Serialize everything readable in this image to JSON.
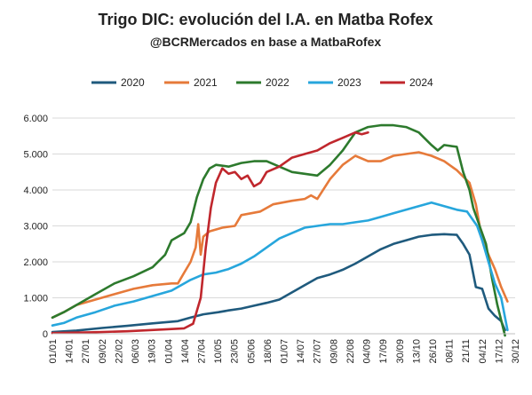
{
  "chart_data": {
    "type": "line",
    "title": "Trigo DIC: evolución del I.A. en Matba Rofex",
    "subtitle": "@BCRMercados en base a MatbaRofex",
    "ylim": [
      0,
      6000
    ],
    "yticks": [
      0,
      1000,
      2000,
      3000,
      4000,
      5000,
      6000
    ],
    "ytick_labels": [
      "0",
      "1.000",
      "2.000",
      "3.000",
      "4.000",
      "5.000",
      "6.000"
    ],
    "xlim": [
      1,
      366
    ],
    "x_units": "day of year",
    "xtick_labels": [
      "01/01",
      "14/01",
      "27/01",
      "09/02",
      "22/02",
      "06/03",
      "19/03",
      "01/04",
      "14/04",
      "27/04",
      "10/05",
      "23/05",
      "05/06",
      "18/06",
      "01/07",
      "14/07",
      "27/07",
      "09/08",
      "22/08",
      "04/09",
      "17/09",
      "30/09",
      "13/10",
      "26/10",
      "08/11",
      "21/11",
      "04/12",
      "17/12",
      "30/12"
    ],
    "grid": "horizontal",
    "legend_position": "top",
    "series": [
      {
        "name": "2020",
        "color": "#1f5a7d",
        "points": [
          [
            1,
            50
          ],
          [
            20,
            90
          ],
          [
            40,
            160
          ],
          [
            60,
            220
          ],
          [
            80,
            290
          ],
          [
            100,
            350
          ],
          [
            110,
            450
          ],
          [
            120,
            540
          ],
          [
            132,
            600
          ],
          [
            140,
            650
          ],
          [
            150,
            700
          ],
          [
            160,
            780
          ],
          [
            170,
            860
          ],
          [
            180,
            950
          ],
          [
            190,
            1150
          ],
          [
            200,
            1350
          ],
          [
            210,
            1550
          ],
          [
            220,
            1650
          ],
          [
            230,
            1780
          ],
          [
            240,
            1950
          ],
          [
            250,
            2150
          ],
          [
            260,
            2350
          ],
          [
            270,
            2500
          ],
          [
            280,
            2600
          ],
          [
            290,
            2700
          ],
          [
            300,
            2750
          ],
          [
            310,
            2770
          ],
          [
            320,
            2750
          ],
          [
            325,
            2500
          ],
          [
            330,
            2200
          ],
          [
            335,
            1300
          ],
          [
            340,
            1250
          ],
          [
            345,
            700
          ],
          [
            350,
            500
          ],
          [
            355,
            350
          ],
          [
            358,
            100
          ]
        ]
      },
      {
        "name": "2021",
        "color": "#e67a3a",
        "points": [
          [
            1,
            450
          ],
          [
            10,
            600
          ],
          [
            20,
            800
          ],
          [
            35,
            950
          ],
          [
            50,
            1100
          ],
          [
            65,
            1250
          ],
          [
            80,
            1350
          ],
          [
            95,
            1400
          ],
          [
            100,
            1400
          ],
          [
            105,
            1700
          ],
          [
            110,
            2000
          ],
          [
            114,
            2400
          ],
          [
            116,
            3050
          ],
          [
            118,
            2200
          ],
          [
            120,
            2700
          ],
          [
            125,
            2850
          ],
          [
            135,
            2950
          ],
          [
            145,
            3000
          ],
          [
            150,
            3300
          ],
          [
            165,
            3400
          ],
          [
            175,
            3600
          ],
          [
            190,
            3700
          ],
          [
            200,
            3750
          ],
          [
            205,
            3850
          ],
          [
            210,
            3750
          ],
          [
            220,
            4300
          ],
          [
            230,
            4700
          ],
          [
            240,
            4950
          ],
          [
            250,
            4800
          ],
          [
            260,
            4800
          ],
          [
            270,
            4950
          ],
          [
            280,
            5000
          ],
          [
            290,
            5050
          ],
          [
            300,
            4950
          ],
          [
            310,
            4800
          ],
          [
            320,
            4550
          ],
          [
            330,
            4200
          ],
          [
            335,
            3600
          ],
          [
            340,
            2600
          ],
          [
            345,
            2200
          ],
          [
            350,
            1800
          ],
          [
            355,
            1300
          ],
          [
            360,
            900
          ]
        ]
      },
      {
        "name": "2022",
        "color": "#2d7a2d",
        "points": [
          [
            1,
            450
          ],
          [
            10,
            600
          ],
          [
            20,
            800
          ],
          [
            35,
            1100
          ],
          [
            50,
            1400
          ],
          [
            65,
            1600
          ],
          [
            80,
            1850
          ],
          [
            90,
            2200
          ],
          [
            95,
            2600
          ],
          [
            105,
            2800
          ],
          [
            110,
            3100
          ],
          [
            115,
            3800
          ],
          [
            120,
            4300
          ],
          [
            125,
            4600
          ],
          [
            130,
            4700
          ],
          [
            140,
            4650
          ],
          [
            150,
            4750
          ],
          [
            160,
            4800
          ],
          [
            170,
            4800
          ],
          [
            180,
            4650
          ],
          [
            190,
            4500
          ],
          [
            200,
            4450
          ],
          [
            210,
            4400
          ],
          [
            220,
            4700
          ],
          [
            230,
            5100
          ],
          [
            240,
            5600
          ],
          [
            250,
            5750
          ],
          [
            260,
            5800
          ],
          [
            270,
            5800
          ],
          [
            280,
            5750
          ],
          [
            290,
            5600
          ],
          [
            300,
            5250
          ],
          [
            305,
            5100
          ],
          [
            310,
            5250
          ],
          [
            320,
            5200
          ],
          [
            325,
            4500
          ],
          [
            330,
            4000
          ],
          [
            333,
            3500
          ],
          [
            338,
            3000
          ],
          [
            343,
            2500
          ],
          [
            348,
            1500
          ],
          [
            352,
            800
          ],
          [
            358,
            -50
          ]
        ]
      },
      {
        "name": "2023",
        "color": "#27a6dc",
        "points": [
          [
            1,
            230
          ],
          [
            10,
            300
          ],
          [
            20,
            450
          ],
          [
            35,
            600
          ],
          [
            50,
            780
          ],
          [
            65,
            900
          ],
          [
            80,
            1050
          ],
          [
            95,
            1200
          ],
          [
            110,
            1500
          ],
          [
            120,
            1650
          ],
          [
            130,
            1700
          ],
          [
            140,
            1800
          ],
          [
            150,
            1950
          ],
          [
            160,
            2150
          ],
          [
            170,
            2400
          ],
          [
            180,
            2650
          ],
          [
            190,
            2800
          ],
          [
            200,
            2950
          ],
          [
            210,
            3000
          ],
          [
            220,
            3050
          ],
          [
            230,
            3050
          ],
          [
            240,
            3100
          ],
          [
            250,
            3150
          ],
          [
            260,
            3250
          ],
          [
            270,
            3350
          ],
          [
            280,
            3450
          ],
          [
            290,
            3550
          ],
          [
            300,
            3650
          ],
          [
            310,
            3550
          ],
          [
            320,
            3450
          ],
          [
            328,
            3400
          ],
          [
            332,
            3200
          ],
          [
            336,
            3000
          ],
          [
            340,
            2600
          ],
          [
            345,
            2000
          ],
          [
            350,
            1400
          ],
          [
            355,
            1000
          ],
          [
            360,
            100
          ]
        ]
      },
      {
        "name": "2024",
        "color": "#c0272d",
        "points": [
          [
            1,
            20
          ],
          [
            30,
            40
          ],
          [
            60,
            70
          ],
          [
            90,
            120
          ],
          [
            105,
            150
          ],
          [
            112,
            280
          ],
          [
            118,
            1000
          ],
          [
            122,
            2400
          ],
          [
            126,
            3500
          ],
          [
            130,
            4200
          ],
          [
            135,
            4600
          ],
          [
            140,
            4450
          ],
          [
            145,
            4500
          ],
          [
            150,
            4300
          ],
          [
            155,
            4400
          ],
          [
            160,
            4100
          ],
          [
            165,
            4200
          ],
          [
            170,
            4500
          ],
          [
            180,
            4650
          ],
          [
            190,
            4900
          ],
          [
            200,
            5000
          ],
          [
            210,
            5100
          ],
          [
            220,
            5300
          ],
          [
            230,
            5450
          ],
          [
            240,
            5600
          ],
          [
            245,
            5550
          ],
          [
            250,
            5600
          ]
        ]
      }
    ]
  }
}
